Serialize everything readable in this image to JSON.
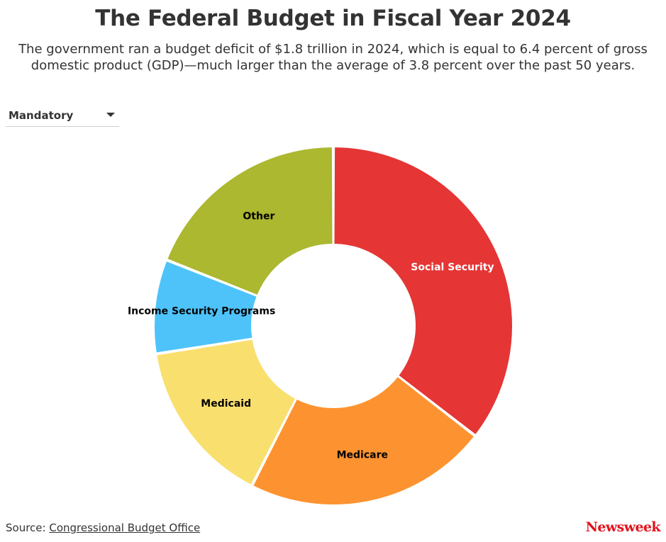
{
  "header": {
    "title": "The Federal Budget in Fiscal Year 2024",
    "subtitle": "The government ran a budget deficit of $1.8 trillion in 2024, which is equal to 6.4 percent of gross domestic product (GDP)—much larger than the average of 3.8 percent over the past 50 years."
  },
  "filter": {
    "selected": "Mandatory"
  },
  "chart_data": {
    "type": "pie",
    "variant": "donut",
    "value_unit": "approximate percent of mandatory outlays (estimated from slice angles)",
    "labels": [
      "Social Security",
      "Medicare",
      "Medicaid",
      "Income Security Programs",
      "Other"
    ],
    "values": [
      35.5,
      22.0,
      15.0,
      8.5,
      19.0
    ],
    "colors": [
      "#e53535",
      "#fd9330",
      "#f9df6e",
      "#4dc3fa",
      "#abb830"
    ],
    "label_colors": [
      "#ffffff",
      "#000000",
      "#000000",
      "#000000",
      "#000000"
    ],
    "start_angle_deg": 0,
    "legend": "none"
  },
  "footer": {
    "source_prefix": "Source:",
    "source_link": "Congressional Budget Office",
    "brand": "Newsweek"
  }
}
